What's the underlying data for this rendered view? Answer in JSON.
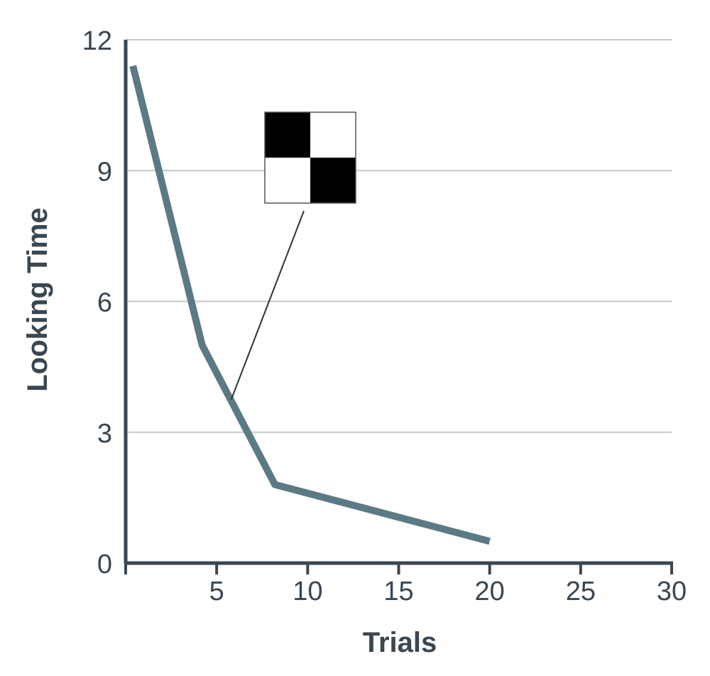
{
  "chart_data": {
    "type": "line",
    "title": "",
    "xlabel": "Trials",
    "ylabel": "Looking Time",
    "xlim": [
      0,
      30
    ],
    "ylim": [
      0,
      12
    ],
    "x_ticks": [
      5,
      10,
      15,
      20,
      25,
      30
    ],
    "y_ticks": [
      0,
      3,
      6,
      9,
      12
    ],
    "grid": "horizontal",
    "legend": "none",
    "series": [
      {
        "color": "#5b7a85",
        "x": [
          0.4,
          4.2,
          8.2,
          20
        ],
        "y": [
          11.4,
          5.0,
          1.8,
          0.5
        ]
      }
    ],
    "annotation": {
      "type": "stimulus-image",
      "icon": "checkerboard-2x2-icon",
      "points_to": {
        "x": 5.8,
        "y": 3.75
      }
    }
  }
}
